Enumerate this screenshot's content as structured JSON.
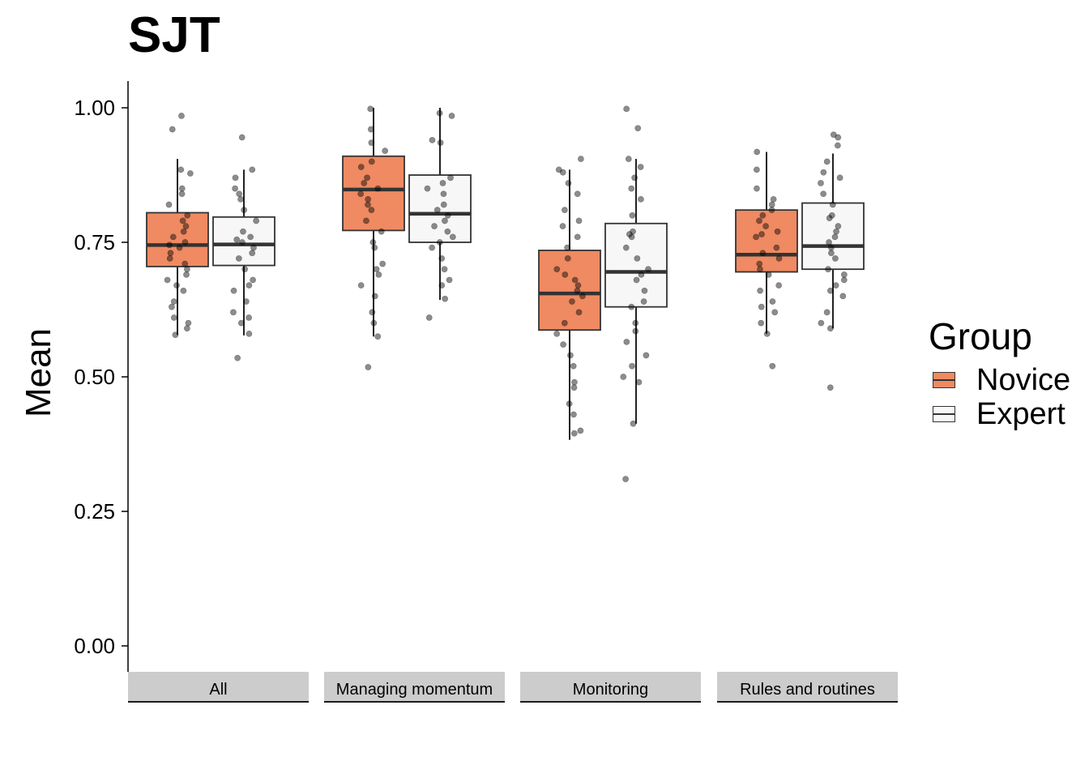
{
  "chart_data": {
    "type": "boxplot",
    "title": "SJT",
    "ylabel": "Mean",
    "xlabel": "",
    "ylim": [
      -0.05,
      1.05
    ],
    "yticks": [
      "0.00",
      "0.25",
      "0.50",
      "0.75",
      "1.00"
    ],
    "ytick_values": [
      0,
      0.25,
      0.5,
      0.75,
      1.0
    ],
    "facets": [
      "All",
      "Managing momentum",
      "Monitoring",
      "Rules and routines"
    ],
    "legend": {
      "title": "Group",
      "position": "right"
    },
    "series": [
      {
        "name": "Novice",
        "color": "#EF8A62",
        "boxes": [
          {
            "facet": "All",
            "q1": 0.705,
            "median": 0.745,
            "q3": 0.805,
            "lower": 0.578,
            "upper": 0.905
          },
          {
            "facet": "Managing momentum",
            "q1": 0.772,
            "median": 0.848,
            "q3": 0.91,
            "lower": 0.575,
            "upper": 1.0
          },
          {
            "facet": "Monitoring",
            "q1": 0.587,
            "median": 0.655,
            "q3": 0.735,
            "lower": 0.383,
            "upper": 0.885
          },
          {
            "facet": "Rules and routines",
            "q1": 0.695,
            "median": 0.727,
            "q3": 0.81,
            "lower": 0.58,
            "upper": 0.918
          }
        ]
      },
      {
        "name": "Expert",
        "color": "#F7F7F7",
        "boxes": [
          {
            "facet": "All",
            "q1": 0.707,
            "median": 0.746,
            "q3": 0.797,
            "lower": 0.577,
            "upper": 0.885
          },
          {
            "facet": "Managing momentum",
            "q1": 0.75,
            "median": 0.803,
            "q3": 0.875,
            "lower": 0.643,
            "upper": 1.0
          },
          {
            "facet": "Monitoring",
            "q1": 0.63,
            "median": 0.695,
            "q3": 0.785,
            "lower": 0.413,
            "upper": 0.905
          },
          {
            "facet": "Rules and routines",
            "q1": 0.7,
            "median": 0.743,
            "q3": 0.823,
            "lower": 0.59,
            "upper": 0.915
          }
        ]
      }
    ],
    "points": [
      {
        "facet": "All",
        "group": "Novice",
        "values": [
          0.985,
          0.96,
          0.885,
          0.878,
          0.85,
          0.84,
          0.82,
          0.8,
          0.79,
          0.78,
          0.77,
          0.76,
          0.75,
          0.745,
          0.74,
          0.73,
          0.72,
          0.71,
          0.7,
          0.69,
          0.68,
          0.67,
          0.66,
          0.64,
          0.63,
          0.61,
          0.6,
          0.59,
          0.578
        ]
      },
      {
        "facet": "All",
        "group": "Expert",
        "values": [
          0.945,
          0.885,
          0.87,
          0.85,
          0.84,
          0.83,
          0.81,
          0.79,
          0.77,
          0.76,
          0.755,
          0.75,
          0.74,
          0.73,
          0.72,
          0.7,
          0.68,
          0.67,
          0.66,
          0.64,
          0.62,
          0.61,
          0.6,
          0.58,
          0.535
        ]
      },
      {
        "facet": "Managing momentum",
        "group": "Novice",
        "values": [
          0.998,
          0.96,
          0.935,
          0.92,
          0.9,
          0.89,
          0.87,
          0.86,
          0.85,
          0.84,
          0.83,
          0.82,
          0.81,
          0.79,
          0.77,
          0.75,
          0.74,
          0.71,
          0.7,
          0.69,
          0.67,
          0.65,
          0.62,
          0.6,
          0.575,
          0.518
        ]
      },
      {
        "facet": "Managing momentum",
        "group": "Expert",
        "values": [
          0.99,
          0.985,
          0.94,
          0.935,
          0.87,
          0.86,
          0.85,
          0.84,
          0.82,
          0.81,
          0.8,
          0.79,
          0.78,
          0.77,
          0.76,
          0.75,
          0.74,
          0.72,
          0.7,
          0.68,
          0.67,
          0.645,
          0.61
        ]
      },
      {
        "facet": "Monitoring",
        "group": "Novice",
        "values": [
          0.905,
          0.885,
          0.88,
          0.86,
          0.84,
          0.81,
          0.79,
          0.78,
          0.76,
          0.74,
          0.72,
          0.7,
          0.69,
          0.68,
          0.67,
          0.66,
          0.65,
          0.64,
          0.62,
          0.6,
          0.58,
          0.56,
          0.54,
          0.52,
          0.49,
          0.48,
          0.45,
          0.43,
          0.4,
          0.395
        ]
      },
      {
        "facet": "Monitoring",
        "group": "Expert",
        "values": [
          0.998,
          0.962,
          0.905,
          0.89,
          0.87,
          0.85,
          0.83,
          0.8,
          0.77,
          0.765,
          0.76,
          0.74,
          0.72,
          0.7,
          0.69,
          0.68,
          0.66,
          0.64,
          0.63,
          0.6,
          0.585,
          0.565,
          0.54,
          0.52,
          0.5,
          0.49,
          0.413,
          0.31
        ]
      },
      {
        "facet": "Rules and routines",
        "group": "Novice",
        "values": [
          0.918,
          0.885,
          0.85,
          0.83,
          0.82,
          0.81,
          0.8,
          0.79,
          0.78,
          0.77,
          0.765,
          0.76,
          0.74,
          0.73,
          0.72,
          0.71,
          0.7,
          0.69,
          0.67,
          0.66,
          0.64,
          0.63,
          0.62,
          0.6,
          0.58,
          0.52
        ]
      },
      {
        "facet": "Rules and routines",
        "group": "Expert",
        "values": [
          0.95,
          0.945,
          0.93,
          0.9,
          0.88,
          0.87,
          0.86,
          0.84,
          0.82,
          0.8,
          0.795,
          0.78,
          0.77,
          0.76,
          0.75,
          0.74,
          0.73,
          0.72,
          0.7,
          0.69,
          0.68,
          0.67,
          0.66,
          0.65,
          0.62,
          0.6,
          0.59,
          0.48
        ]
      }
    ]
  }
}
